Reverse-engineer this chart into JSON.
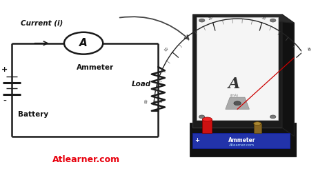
{
  "bg_color": "#ffffff",
  "title_text": "Atlearner.com",
  "title_color": "#e8000d",
  "circuit": {
    "ammeter_label": "Ammeter",
    "current_label": "Current (i)",
    "battery_label": "Battery",
    "load_label": "Load"
  },
  "colors": {
    "circuit_line": "#1a1a1a",
    "text_dark": "#111111",
    "arrow_color": "#555555"
  },
  "ammeter_device": {
    "body_color": "#1c1c1c",
    "face_color": "#f2f2f2",
    "face_edge": "#cccccc",
    "base_color": "#1e1e6e",
    "red_terminal": "#cc1111",
    "gold_terminal": "#aa8800",
    "screw_color": "#888888",
    "needle_color": "#cc0000",
    "tick_color": "#222222",
    "ammeter_label_color": "#ffffff",
    "atlearner_color": "#aaaaaa"
  }
}
